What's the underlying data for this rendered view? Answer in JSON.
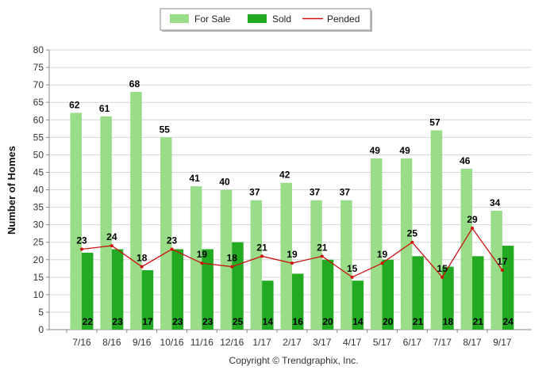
{
  "chart_data": {
    "type": "bar",
    "title": "",
    "xlabel": "",
    "ylabel": "Number of Homes",
    "ylim": [
      0,
      80
    ],
    "ytick_step": 5,
    "grid": true,
    "legend_position": "top-center",
    "categories": [
      "7/16",
      "8/16",
      "9/16",
      "10/16",
      "11/16",
      "12/16",
      "1/17",
      "2/17",
      "3/17",
      "4/17",
      "5/17",
      "6/17",
      "7/17",
      "8/17",
      "9/17"
    ],
    "series": [
      {
        "name": "For Sale",
        "kind": "bar",
        "color": "#99dd88",
        "values": [
          62,
          61,
          68,
          55,
          41,
          40,
          37,
          42,
          37,
          37,
          49,
          49,
          57,
          46,
          34
        ]
      },
      {
        "name": "Sold",
        "kind": "bar",
        "color": "#22aa22",
        "values": [
          22,
          23,
          17,
          23,
          23,
          25,
          14,
          16,
          20,
          14,
          20,
          21,
          18,
          21,
          24
        ]
      },
      {
        "name": "Pended",
        "kind": "line",
        "color": "#cc1111",
        "values": [
          23,
          24,
          18,
          23,
          19,
          18,
          21,
          19,
          21,
          15,
          19,
          25,
          15,
          29,
          17
        ]
      }
    ]
  },
  "footer": {
    "copyright": "Copyright © Trendgraphix, Inc."
  }
}
